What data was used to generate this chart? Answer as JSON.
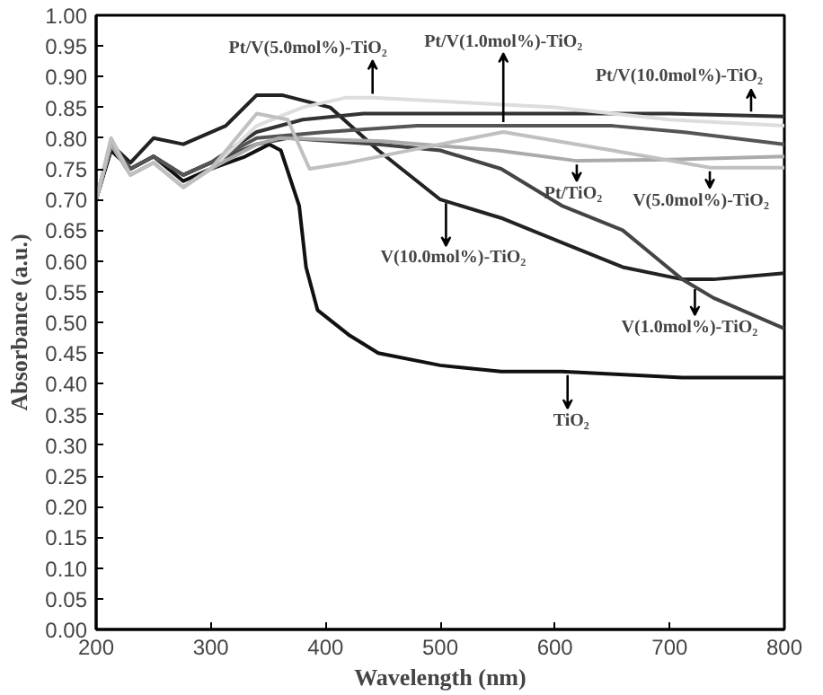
{
  "chart_data": {
    "type": "line",
    "xlabel": "Wavelength (nm)",
    "ylabel": "Absorbance (a.u.)",
    "xlim": [
      200,
      800
    ],
    "ylim": [
      0.0,
      1.0
    ],
    "xticks": [
      200,
      300,
      400,
      500,
      600,
      700,
      800
    ],
    "yticks": [
      {
        "value": 0.0,
        "label": "0.00"
      },
      {
        "value": 0.05,
        "label": "0.05"
      },
      {
        "value": 0.1,
        "label": "0.10"
      },
      {
        "value": 0.15,
        "label": "0.15"
      },
      {
        "value": 0.2,
        "label": "0.20"
      },
      {
        "value": 0.25,
        "label": "0.25"
      },
      {
        "value": 0.3,
        "label": "0.30"
      },
      {
        "value": 0.35,
        "label": "0.35"
      },
      {
        "value": 0.4,
        "label": "0.40"
      },
      {
        "value": 0.45,
        "label": "0.45"
      },
      {
        "value": 0.5,
        "label": "0.50"
      },
      {
        "value": 0.55,
        "label": "0.55"
      },
      {
        "value": 0.6,
        "label": "0.60"
      },
      {
        "value": 0.65,
        "label": "0.65"
      },
      {
        "value": 0.7,
        "label": "0.70"
      },
      {
        "value": 0.75,
        "label": "0.75"
      },
      {
        "value": 0.8,
        "label": "0.80"
      },
      {
        "value": 0.85,
        "label": "0.85"
      },
      {
        "value": 0.9,
        "label": "0.90"
      },
      {
        "value": 0.95,
        "label": "0.95"
      },
      {
        "value": 1.0,
        "label": "1.00"
      }
    ],
    "grid": false,
    "line_style": "solid",
    "series": [
      {
        "color": "#111111",
        "x": [
          200,
          213,
          230,
          250,
          276,
          300,
          330,
          351,
          361,
          377,
          383,
          393,
          420,
          446,
          500,
          553,
          606,
          711,
          800
        ],
        "values": [
          0.7,
          0.78,
          0.75,
          0.77,
          0.73,
          0.75,
          0.77,
          0.79,
          0.78,
          0.69,
          0.59,
          0.52,
          0.48,
          0.45,
          0.43,
          0.42,
          0.42,
          0.41,
          0.41
        ]
      },
      {
        "color": "#222222",
        "x": [
          200,
          213,
          230,
          250,
          276,
          313,
          340,
          362,
          404,
          446,
          500,
          553,
          606,
          659,
          711,
          738,
          800
        ],
        "values": [
          0.7,
          0.79,
          0.76,
          0.8,
          0.79,
          0.82,
          0.87,
          0.87,
          0.85,
          0.78,
          0.7,
          0.67,
          0.63,
          0.59,
          0.57,
          0.57,
          0.58
        ]
      },
      {
        "color": "#444444",
        "x": [
          200,
          213,
          230,
          250,
          276,
          300,
          340,
          367,
          446,
          500,
          553,
          606,
          659,
          685,
          711,
          738,
          800
        ],
        "values": [
          0.7,
          0.79,
          0.75,
          0.77,
          0.74,
          0.76,
          0.79,
          0.8,
          0.79,
          0.78,
          0.75,
          0.69,
          0.65,
          0.61,
          0.57,
          0.54,
          0.49
        ]
      },
      {
        "color": "#333333",
        "x": [
          200,
          213,
          230,
          250,
          276,
          300,
          340,
          380,
          433,
          500,
          600,
          700,
          800
        ],
        "values": [
          0.7,
          0.79,
          0.75,
          0.77,
          0.74,
          0.76,
          0.81,
          0.83,
          0.84,
          0.84,
          0.84,
          0.84,
          0.835
        ]
      },
      {
        "color": "#555555",
        "x": [
          200,
          213,
          230,
          250,
          276,
          300,
          340,
          400,
          480,
          555,
          650,
          711,
          800
        ],
        "values": [
          0.7,
          0.79,
          0.75,
          0.77,
          0.74,
          0.76,
          0.8,
          0.81,
          0.82,
          0.82,
          0.82,
          0.81,
          0.79
        ]
      },
      {
        "color": "#dddddd",
        "x": [
          200,
          213,
          230,
          250,
          276,
          300,
          340,
          380,
          418,
          441,
          500,
          600,
          700,
          800
        ],
        "values": [
          0.7,
          0.79,
          0.74,
          0.76,
          0.72,
          0.75,
          0.82,
          0.85,
          0.866,
          0.866,
          0.86,
          0.85,
          0.83,
          0.82
        ]
      },
      {
        "color": "#aaaaaa",
        "x": [
          200,
          213,
          230,
          250,
          276,
          300,
          340,
          360,
          450,
          550,
          619,
          700,
          800
        ],
        "values": [
          0.7,
          0.79,
          0.74,
          0.76,
          0.72,
          0.75,
          0.79,
          0.8,
          0.795,
          0.78,
          0.763,
          0.765,
          0.77
        ]
      },
      {
        "color": "#c0c0c0",
        "x": [
          200,
          213,
          230,
          250,
          276,
          300,
          340,
          367,
          386,
          420,
          500,
          555,
          650,
          735,
          800
        ],
        "values": [
          0.7,
          0.8,
          0.74,
          0.76,
          0.72,
          0.75,
          0.84,
          0.83,
          0.75,
          0.76,
          0.79,
          0.81,
          0.78,
          0.752,
          0.752
        ]
      }
    ],
    "annotations": [
      {
        "text": "Pt/V(5.0mol%)-TiO₂",
        "x": 441,
        "y": 0.866
      },
      {
        "text": "Pt/V(1.0mol%)-TiO₂",
        "x": 555,
        "y": 0.82
      },
      {
        "text": "Pt/V(10.0mol%)-TiO₂",
        "x": 771,
        "y": 0.837
      },
      {
        "text": "Pt/TiO₂",
        "x": 619,
        "y": 0.763
      },
      {
        "text": "V(5.0mol%)-TiO₂",
        "x": 735,
        "y": 0.752
      },
      {
        "text": "V(10.0mol%)-TiO₂",
        "x": 505,
        "y": 0.7
      },
      {
        "text": "V(1.0mol%)-TiO₂",
        "x": 722,
        "y": 0.56
      },
      {
        "text": "TiO₂",
        "x": 611,
        "y": 0.42
      }
    ]
  }
}
